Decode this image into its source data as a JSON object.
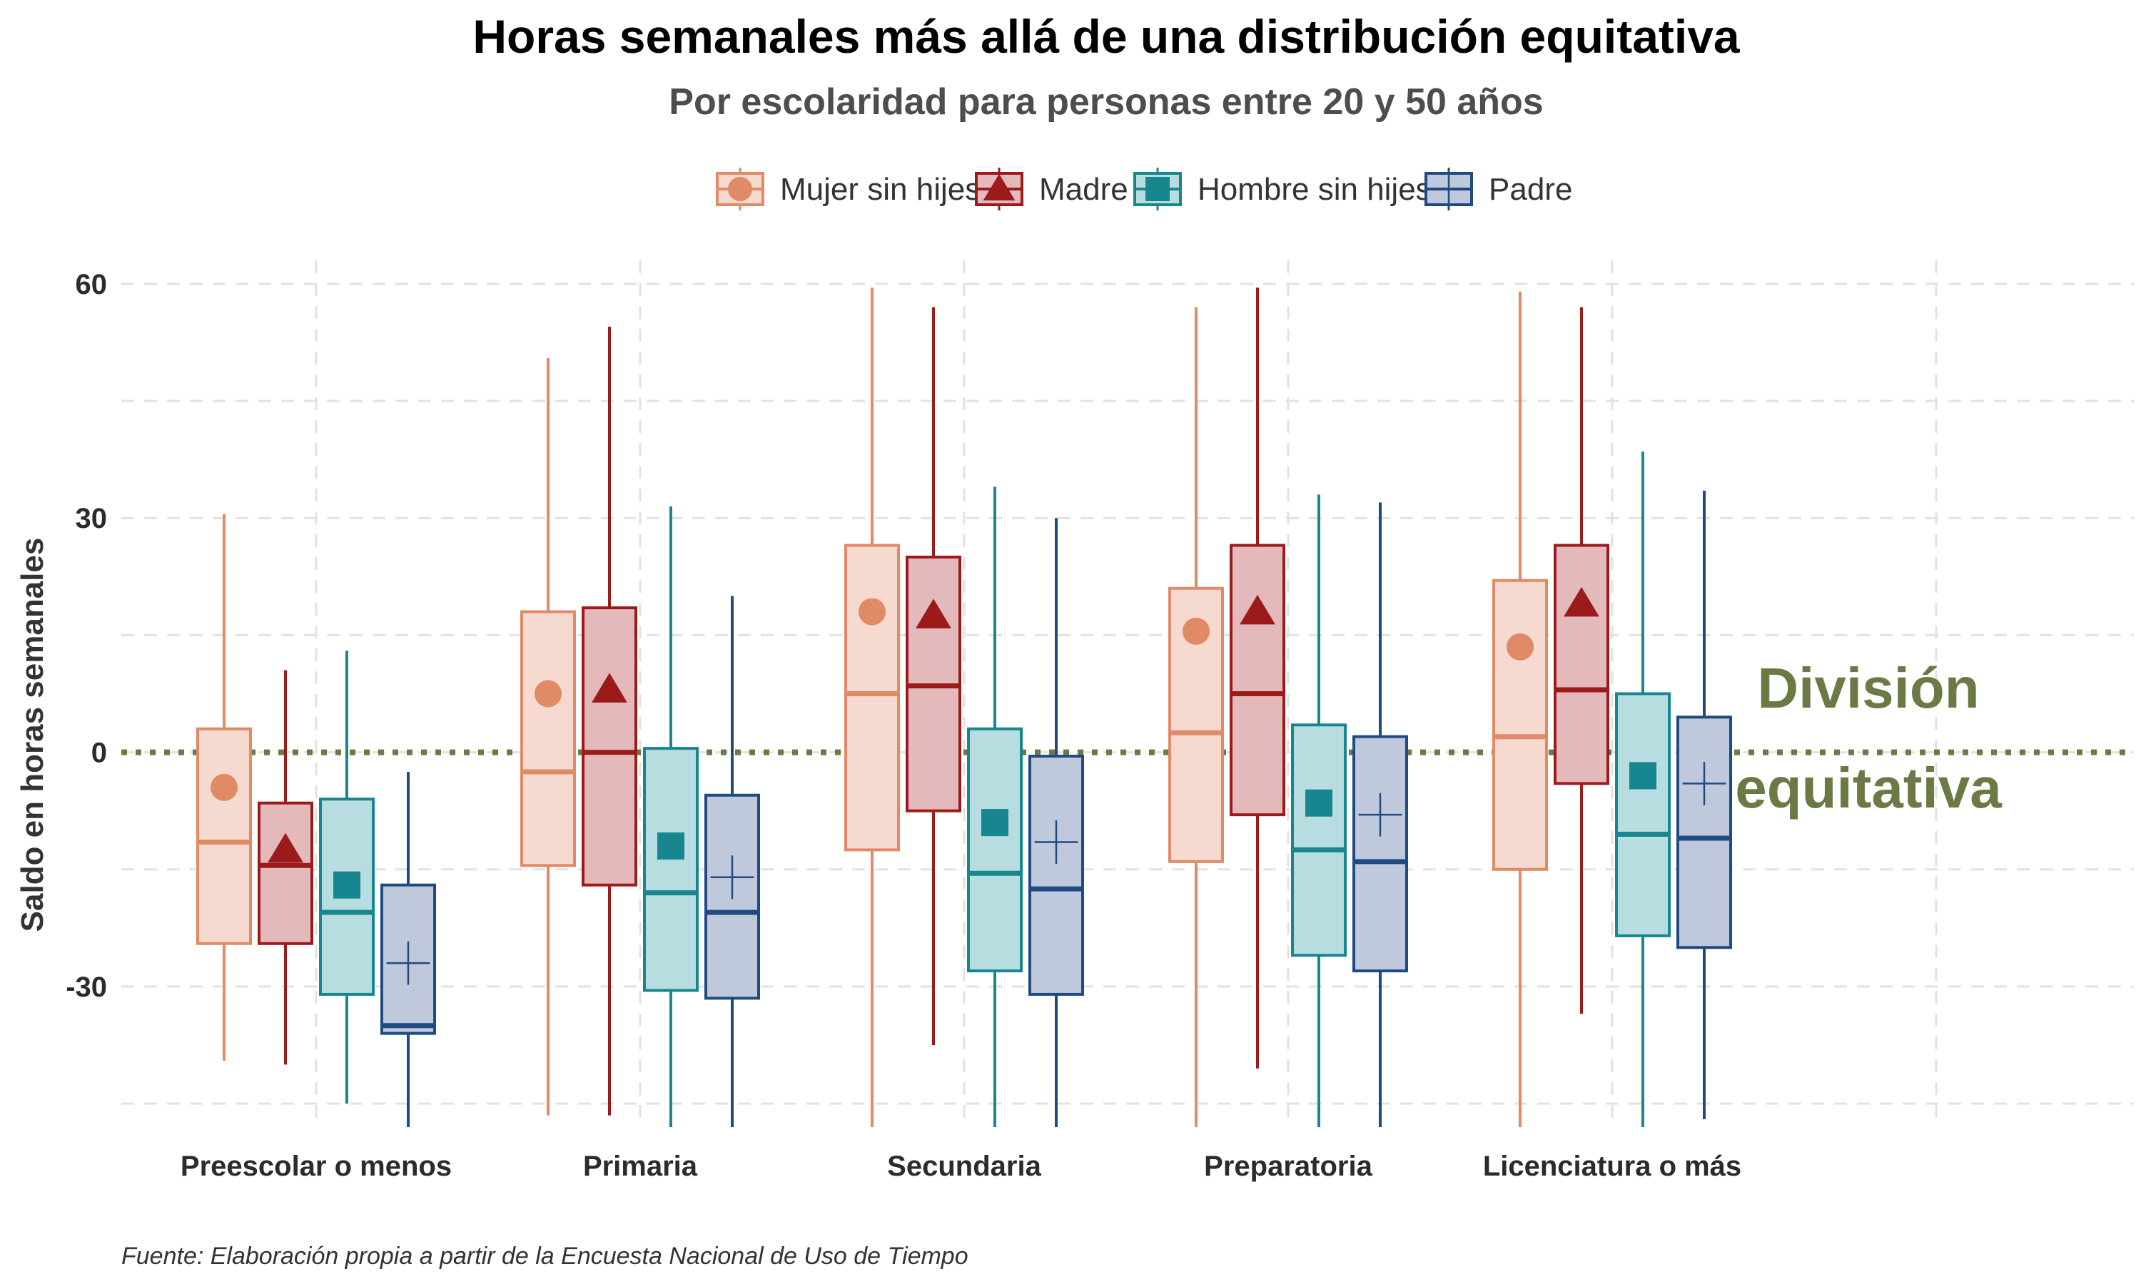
{
  "chart_data": {
    "type": "box",
    "title": "Horas semanales más allá de una distribución equitativa",
    "subtitle": "Por escolaridad para personas entre 20 y 50 años",
    "ylabel": "Saldo en horas semanales",
    "xlabel": "",
    "caption": "Fuente: Elaboración propia a partir de la Encuesta Nacional de Uso de Tiempo",
    "annotation": [
      "División",
      "equitativa"
    ],
    "reference_line": 0,
    "ylim": [
      -48,
      63
    ],
    "yticks": [
      -30,
      0,
      30,
      60
    ],
    "grid": true,
    "legend_position": "top",
    "categories": [
      "Preescolar o menos",
      "Primaria",
      "Secundaria",
      "Preparatoria",
      "Licenciatura o más"
    ],
    "series": [
      {
        "name": "Mujer sin hijes",
        "color": "#e08a66",
        "fill": "#f6d9cf",
        "marker": "circle",
        "boxes": [
          {
            "whisker_low": -39.5,
            "q1": -24.5,
            "median": -11.5,
            "q3": 3,
            "whisker_high": 30.5,
            "mean": -4.5
          },
          {
            "whisker_low": -46.5,
            "q1": -14.5,
            "median": -2.5,
            "q3": 18,
            "whisker_high": 50.5,
            "mean": 7.5
          },
          {
            "whisker_low": -48,
            "q1": -12.5,
            "median": 7.5,
            "q3": 26.5,
            "whisker_high": 59.5,
            "mean": 18
          },
          {
            "whisker_low": -48,
            "q1": -14,
            "median": 2.5,
            "q3": 21,
            "whisker_high": 57,
            "mean": 15.5
          },
          {
            "whisker_low": -48,
            "q1": -15,
            "median": 2,
            "q3": 22,
            "whisker_high": 59,
            "mean": 13.5
          }
        ]
      },
      {
        "name": "Madre",
        "color": "#9b1b1b",
        "fill": "#e4b9bb",
        "marker": "triangle",
        "boxes": [
          {
            "whisker_low": -40,
            "q1": -24.5,
            "median": -14.5,
            "q3": -6.5,
            "whisker_high": 10.5,
            "mean": -12.5
          },
          {
            "whisker_low": -46.5,
            "q1": -17,
            "median": 0,
            "q3": 18.5,
            "whisker_high": 54.5,
            "mean": 8
          },
          {
            "whisker_low": -37.5,
            "q1": -7.5,
            "median": 8.5,
            "q3": 25,
            "whisker_high": 57,
            "mean": 17.5
          },
          {
            "whisker_low": -40.5,
            "q1": -8,
            "median": 7.5,
            "q3": 26.5,
            "whisker_high": 59.5,
            "mean": 18
          },
          {
            "whisker_low": -33.5,
            "q1": -4,
            "median": 8,
            "q3": 26.5,
            "whisker_high": 57,
            "mean": 19
          }
        ]
      },
      {
        "name": "Hombre sin hijes",
        "color": "#17868f",
        "fill": "#b7dde1",
        "marker": "square",
        "boxes": [
          {
            "whisker_low": -45,
            "q1": -31,
            "median": -20.5,
            "q3": -6,
            "whisker_high": 13,
            "mean": -17
          },
          {
            "whisker_low": -48,
            "q1": -30.5,
            "median": -18,
            "q3": 0.5,
            "whisker_high": 31.5,
            "mean": -12
          },
          {
            "whisker_low": -48,
            "q1": -28,
            "median": -15.5,
            "q3": 3,
            "whisker_high": 34,
            "mean": -9
          },
          {
            "whisker_low": -48,
            "q1": -26,
            "median": -12.5,
            "q3": 3.5,
            "whisker_high": 33,
            "mean": -6.5
          },
          {
            "whisker_low": -48,
            "q1": -23.5,
            "median": -10.5,
            "q3": 7.5,
            "whisker_high": 38.5,
            "mean": -3
          }
        ]
      },
      {
        "name": "Padre",
        "color": "#1f4a82",
        "fill": "#bfc9db",
        "marker": "plus",
        "boxes": [
          {
            "whisker_low": -48,
            "q1": -36,
            "median": -35,
            "q3": -17,
            "whisker_high": -2.5,
            "mean": -27
          },
          {
            "whisker_low": -48,
            "q1": -31.5,
            "median": -20.5,
            "q3": -5.5,
            "whisker_high": 20,
            "mean": -16
          },
          {
            "whisker_low": -48,
            "q1": -31,
            "median": -17.5,
            "q3": -0.5,
            "whisker_high": 30,
            "mean": -11.5
          },
          {
            "whisker_low": -48,
            "q1": -28,
            "median": -14,
            "q3": 2,
            "whisker_high": 32,
            "mean": -8
          },
          {
            "whisker_low": -47,
            "q1": -25,
            "median": -11,
            "q3": 4.5,
            "whisker_high": 33.5,
            "mean": -4
          }
        ]
      }
    ]
  }
}
